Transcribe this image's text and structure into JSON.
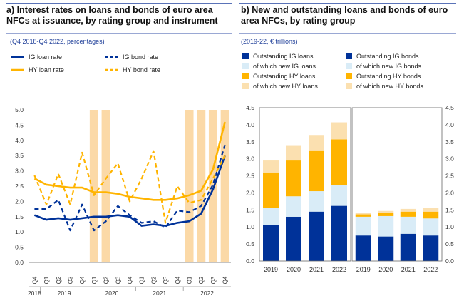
{
  "panel_a": {
    "title_line1": "a) Interest rates on loans and bonds of euro area",
    "title_line2": "NFCs at issuance, by rating group and instrument",
    "subtitle": "(Q4 2018-Q4 2022, percentages)"
  },
  "panel_b": {
    "title_line1": "b) New and outstanding loans and bonds of euro",
    "title_line2": "area NFCs, by rating group",
    "subtitle": "(2019-22, € trillions)"
  },
  "colors": {
    "ig_blue": "#003299",
    "hy_yellow": "#ffb400",
    "ig_light": "#d9ecf7",
    "hy_light": "#fbe0b0",
    "highlight": "#fbd9a7"
  },
  "chart_data": [
    {
      "type": "line",
      "title": "a) Interest rates on loans and bonds of euro area NFCs at issuance, by rating group and instrument",
      "ylim": [
        0,
        5
      ],
      "yticks": [
        "0.0",
        "0.5",
        "1.0",
        "1.5",
        "2.0",
        "2.5",
        "3.0",
        "3.5",
        "4.0",
        "4.5",
        "5.0"
      ],
      "x": [
        "Q4",
        "Q1",
        "Q2",
        "Q3",
        "Q4",
        "Q1",
        "Q2",
        "Q3",
        "Q4",
        "Q1",
        "Q2",
        "Q3",
        "Q4",
        "Q1",
        "Q2",
        "Q3",
        "Q4"
      ],
      "years": [
        "2018",
        "2019",
        "2020",
        "2021",
        "2022"
      ],
      "highlighted_quarters": [
        "Q1 2020",
        "Q2 2020",
        "Q1 2022",
        "Q2 2022",
        "Q3 2022",
        "Q4 2022"
      ],
      "series": [
        {
          "name": "IG loan rate",
          "style": "solid",
          "color": "#003299",
          "values": [
            1.55,
            1.4,
            1.45,
            1.4,
            1.45,
            1.5,
            1.5,
            1.55,
            1.5,
            1.2,
            1.25,
            1.2,
            1.3,
            1.35,
            1.6,
            2.4,
            3.5
          ]
        },
        {
          "name": "IG bond rate",
          "style": "dashed",
          "color": "#003299",
          "values": [
            1.75,
            1.75,
            2.05,
            1.05,
            1.9,
            1.05,
            1.35,
            1.85,
            1.55,
            1.3,
            1.35,
            1.15,
            1.7,
            1.65,
            1.85,
            2.55,
            3.85
          ]
        },
        {
          "name": "HY loan rate",
          "style": "solid",
          "color": "#ffb400",
          "values": [
            2.75,
            2.55,
            2.5,
            2.45,
            2.45,
            2.3,
            2.3,
            2.25,
            2.15,
            2.1,
            2.05,
            2.05,
            2.1,
            2.2,
            2.35,
            3.05,
            4.6
          ]
        },
        {
          "name": "HY bond rate",
          "style": "dashed",
          "color": "#ffb400",
          "values": [
            2.85,
            1.9,
            2.9,
            1.9,
            3.6,
            2.2,
            2.75,
            3.25,
            2.0,
            2.75,
            3.65,
            1.3,
            2.5,
            1.95,
            2.05,
            2.75,
            3.5
          ]
        }
      ]
    },
    {
      "type": "bar",
      "title": "b) New and outstanding loans and bonds of euro area NFCs, by rating group",
      "ylim": [
        0,
        4.5
      ],
      "yticks": [
        "0.0",
        "0.5",
        "1.0",
        "1.5",
        "2.0",
        "2.5",
        "3.0",
        "3.5",
        "4.0",
        "4.5"
      ],
      "categories": [
        "2019",
        "2020",
        "2021",
        "2022"
      ],
      "groups": [
        {
          "name": "Loans",
          "series": [
            {
              "name": "Outstanding IG loans",
              "color": "#003299",
              "values": [
                1.05,
                1.3,
                1.45,
                1.62
              ]
            },
            {
              "name": "of which new IG loans",
              "color": "#d9ecf7",
              "values": [
                0.5,
                0.6,
                0.6,
                0.6
              ]
            },
            {
              "name": "Outstanding HY loans",
              "color": "#ffb400",
              "values": [
                1.05,
                1.05,
                1.2,
                1.35
              ]
            },
            {
              "name": "of which new HY loans",
              "color": "#fbe0b0",
              "values": [
                0.35,
                0.45,
                0.45,
                0.5
              ]
            }
          ]
        },
        {
          "name": "Bonds",
          "series": [
            {
              "name": "Outstanding IG bonds",
              "color": "#003299",
              "values": [
                0.75,
                0.72,
                0.8,
                0.75
              ]
            },
            {
              "name": "of which new IG bonds",
              "color": "#d9ecf7",
              "values": [
                0.55,
                0.6,
                0.5,
                0.5
              ]
            },
            {
              "name": "Outstanding HY bonds",
              "color": "#ffb400",
              "values": [
                0.07,
                0.1,
                0.15,
                0.2
              ]
            },
            {
              "name": "of which new HY bonds",
              "color": "#fbe0b0",
              "values": [
                0.05,
                0.05,
                0.08,
                0.1
              ]
            }
          ]
        }
      ]
    }
  ]
}
